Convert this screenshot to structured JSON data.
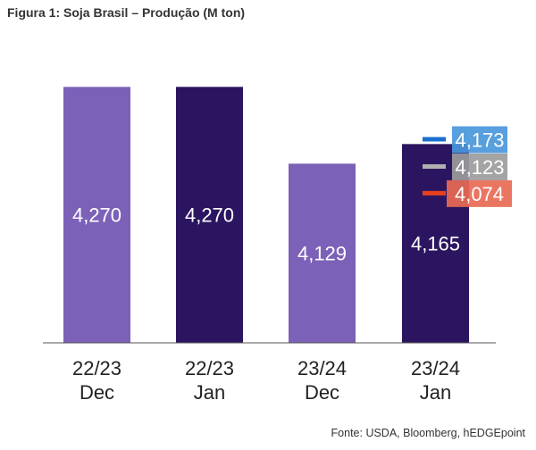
{
  "chart_data": {
    "type": "bar",
    "title": "Figura 1: Soja Brasil – Produção (M ton)",
    "source": "Fonte: USDA, Bloomberg, hEDGEpoint",
    "categories": [
      [
        "22/23",
        "Dec"
      ],
      [
        "22/23",
        "Jan"
      ],
      [
        "23/24",
        "Dec"
      ],
      [
        "23/24",
        "Jan"
      ]
    ],
    "values": [
      4270,
      4270,
      4129,
      4165
    ],
    "value_labels": [
      "4,270",
      "4,270",
      "4,129",
      "4,165"
    ],
    "bar_colors": [
      "#7b61b8",
      "#2b1560",
      "#7b61b8",
      "#2b1560"
    ],
    "ylim": [
      3800,
      4280
    ],
    "markers": [
      {
        "value": 4173,
        "label": "4,173",
        "color": "#1a6fd0",
        "box_color": "#4a97db"
      },
      {
        "value": 4123,
        "label": "4,123",
        "color": "#b0b0b0",
        "box_color": "#9c9c9c"
      },
      {
        "value": 4074,
        "label": "4,074",
        "color": "#e8401c",
        "box_color": "#e86a55"
      }
    ],
    "grid": false,
    "legend": "none"
  }
}
